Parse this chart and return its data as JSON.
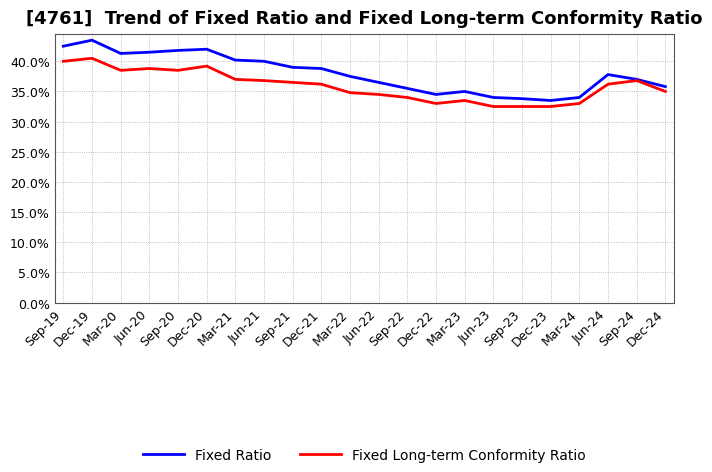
{
  "title": "[4761]  Trend of Fixed Ratio and Fixed Long-term Conformity Ratio",
  "x_labels": [
    "Sep-19",
    "Dec-19",
    "Mar-20",
    "Jun-20",
    "Sep-20",
    "Dec-20",
    "Mar-21",
    "Jun-21",
    "Sep-21",
    "Dec-21",
    "Mar-22",
    "Jun-22",
    "Sep-22",
    "Dec-22",
    "Mar-23",
    "Jun-23",
    "Sep-23",
    "Dec-23",
    "Mar-24",
    "Jun-24",
    "Sep-24",
    "Dec-24"
  ],
  "fixed_ratio": [
    0.425,
    0.435,
    0.413,
    0.415,
    0.418,
    0.42,
    0.402,
    0.4,
    0.39,
    0.388,
    0.375,
    0.365,
    0.355,
    0.345,
    0.35,
    0.34,
    0.338,
    0.335,
    0.34,
    0.378,
    0.37,
    0.358
  ],
  "fixed_lt_ratio": [
    0.4,
    0.405,
    0.385,
    0.388,
    0.385,
    0.392,
    0.37,
    0.368,
    0.365,
    0.362,
    0.348,
    0.345,
    0.34,
    0.33,
    0.335,
    0.325,
    0.325,
    0.325,
    0.33,
    0.362,
    0.368,
    0.35
  ],
  "fixed_ratio_color": "#0000FF",
  "fixed_lt_ratio_color": "#FF0000",
  "ylim": [
    0.0,
    0.445
  ],
  "yticks": [
    0.0,
    0.05,
    0.1,
    0.15,
    0.2,
    0.25,
    0.3,
    0.35,
    0.4
  ],
  "background_color": "#FFFFFF",
  "plot_bg_color": "#FFFFFF",
  "grid_color": "#999999",
  "title_fontsize": 13,
  "legend_fontsize": 10,
  "tick_fontsize": 9
}
